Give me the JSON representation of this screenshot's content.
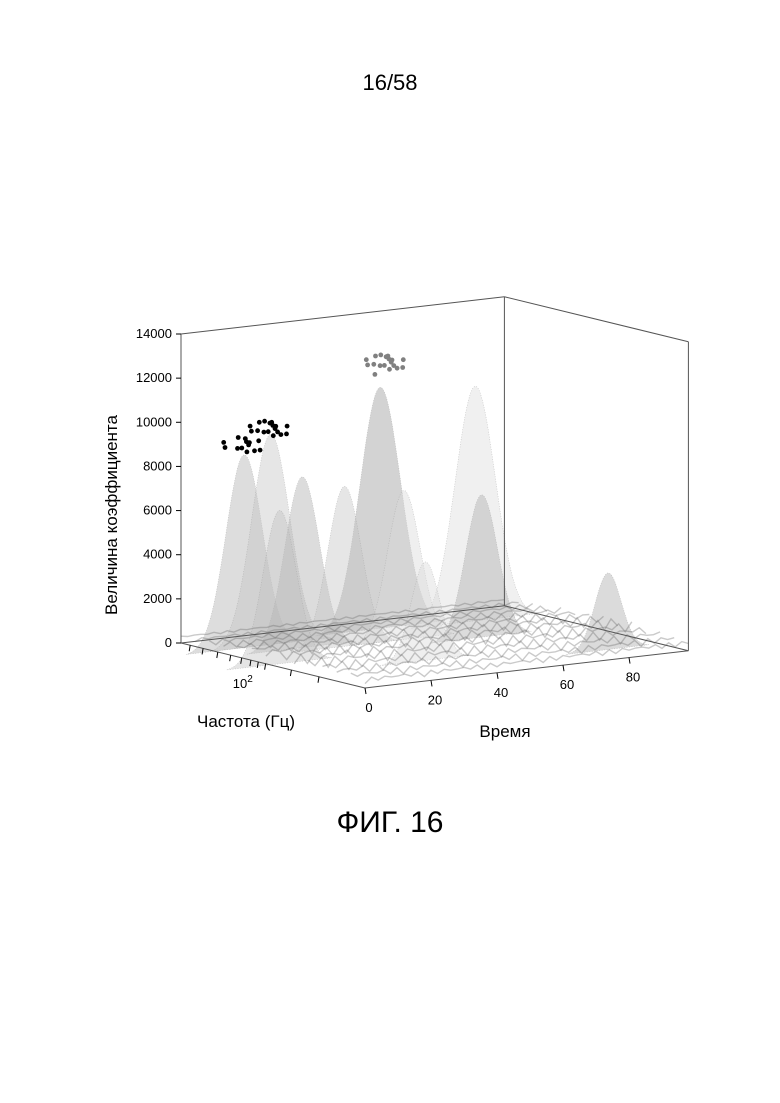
{
  "page": {
    "number": "16/58",
    "caption": "ФИГ. 16"
  },
  "chart_data": {
    "type": "surface-3d",
    "zlabel": "Величина коэффициента",
    "xlabel": "Время",
    "ylabel": "Частота (Гц)",
    "zlim": [
      0,
      14000
    ],
    "z_ticks": [
      0,
      2000,
      4000,
      6000,
      8000,
      10000,
      12000,
      14000
    ],
    "x_ticks": [
      0,
      20,
      40,
      60,
      80
    ],
    "y_ticks": [
      {
        "base": "10",
        "exp": "2"
      }
    ],
    "surface_color": "#9a9a9a",
    "peaks": [
      {
        "time": 2,
        "freq_pos": 0.5,
        "height": 7000
      },
      {
        "time": 8,
        "freq_pos": 0.8,
        "height": 8800
      },
      {
        "time": 16,
        "freq_pos": 0.8,
        "height": 9600
      },
      {
        "time": 20,
        "freq_pos": 0.7,
        "height": 7800
      },
      {
        "time": 30,
        "freq_pos": 0.65,
        "height": 7300
      },
      {
        "time": 35,
        "freq_pos": 0.3,
        "height": 4500
      },
      {
        "time": 48,
        "freq_pos": 0.65,
        "height": 6800
      },
      {
        "time": 52,
        "freq_pos": 0.85,
        "height": 11000
      },
      {
        "time": 66,
        "freq_pos": 0.55,
        "height": 6500
      },
      {
        "time": 78,
        "freq_pos": 0.8,
        "height": 10700
      },
      {
        "time": 82,
        "freq_pos": 0.15,
        "height": 3500
      }
    ],
    "markers": [
      {
        "time": 8,
        "freq_pos": 0.8,
        "height": 9350,
        "color": "#000000",
        "count": 12
      },
      {
        "time": 16,
        "freq_pos": 0.8,
        "height": 9950,
        "color": "#000000",
        "count": 18
      },
      {
        "time": 54,
        "freq_pos": 0.85,
        "height": 12200,
        "color": "#808080",
        "count": 18
      }
    ]
  }
}
